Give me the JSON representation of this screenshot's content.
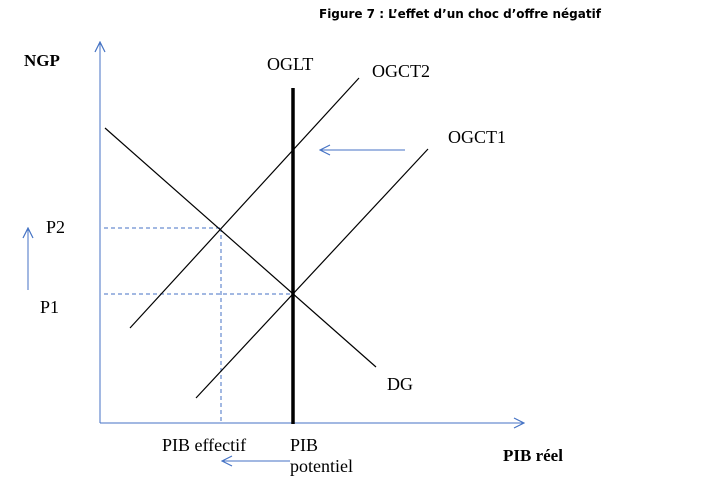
{
  "figure_title": "Figure 7 : L’effet d’un choc d’offre négatif",
  "axes": {
    "y_label": "NGP",
    "x_label": "PIB réel"
  },
  "curves": {
    "oglt": "OGLT",
    "ogct2": "OGCT2",
    "ogct1": "OGCT1",
    "dg": "DG"
  },
  "price_levels": {
    "p2": "P2",
    "p1": "P1"
  },
  "output_levels": {
    "effective": "PIB effectif",
    "potential_line1": "PIB",
    "potential_line2": "potentiel"
  },
  "colors": {
    "axis": "#4472c4",
    "curve": "#000000",
    "guide": "#4472c4"
  }
}
